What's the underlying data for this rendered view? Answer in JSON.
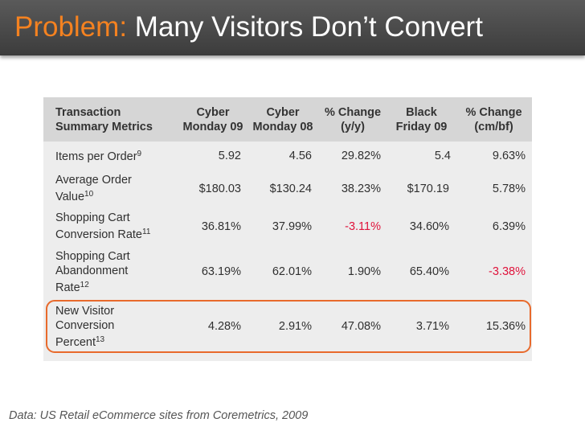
{
  "slide": {
    "title_prefix": "Problem:",
    "title_rest": " Many Visitors Don’t Convert",
    "source": "Data: US Retail eCommerce sites from Coremetrics, 2009"
  },
  "colors": {
    "title_bar": "#4a4a4a",
    "title_accent": "#f58220",
    "negative": "#e0143c",
    "highlight_border": "#e86a2c"
  },
  "table": {
    "headers": [
      [
        "Transaction",
        "Summary Metrics"
      ],
      [
        "Cyber",
        "Monday 09"
      ],
      [
        "Cyber",
        "Monday 08"
      ],
      [
        "% Change",
        "(y/y)"
      ],
      [
        "Black",
        "Friday 09"
      ],
      [
        "% Change",
        "(cm/bf)"
      ]
    ],
    "rows": [
      {
        "label_lines": [
          "Items per Order"
        ],
        "footnote": "9",
        "cells": [
          "5.92",
          "4.56",
          "29.82%",
          "5.4",
          "9.63%"
        ]
      },
      {
        "label_lines": [
          "Average Order",
          "Value"
        ],
        "footnote": "10",
        "cells": [
          "$180.03",
          "$130.24",
          "38.23%",
          "$170.19",
          "5.78%"
        ]
      },
      {
        "label_lines": [
          "Shopping Cart",
          "Conversion Rate"
        ],
        "footnote": "11",
        "cells": [
          "36.81%",
          "37.99%",
          "-3.11%",
          "34.60%",
          "6.39%"
        ]
      },
      {
        "label_lines": [
          "Shopping Cart",
          "Abandonment",
          "Rate"
        ],
        "footnote": "12",
        "cells": [
          "63.19%",
          "62.01%",
          "1.90%",
          "65.40%",
          "-3.38%"
        ]
      },
      {
        "label_lines": [
          "New Visitor",
          "Conversion",
          "Percent"
        ],
        "footnote": "13",
        "cells": [
          "4.28%",
          "2.91%",
          "47.08%",
          "3.71%",
          "15.36%"
        ]
      }
    ]
  }
}
